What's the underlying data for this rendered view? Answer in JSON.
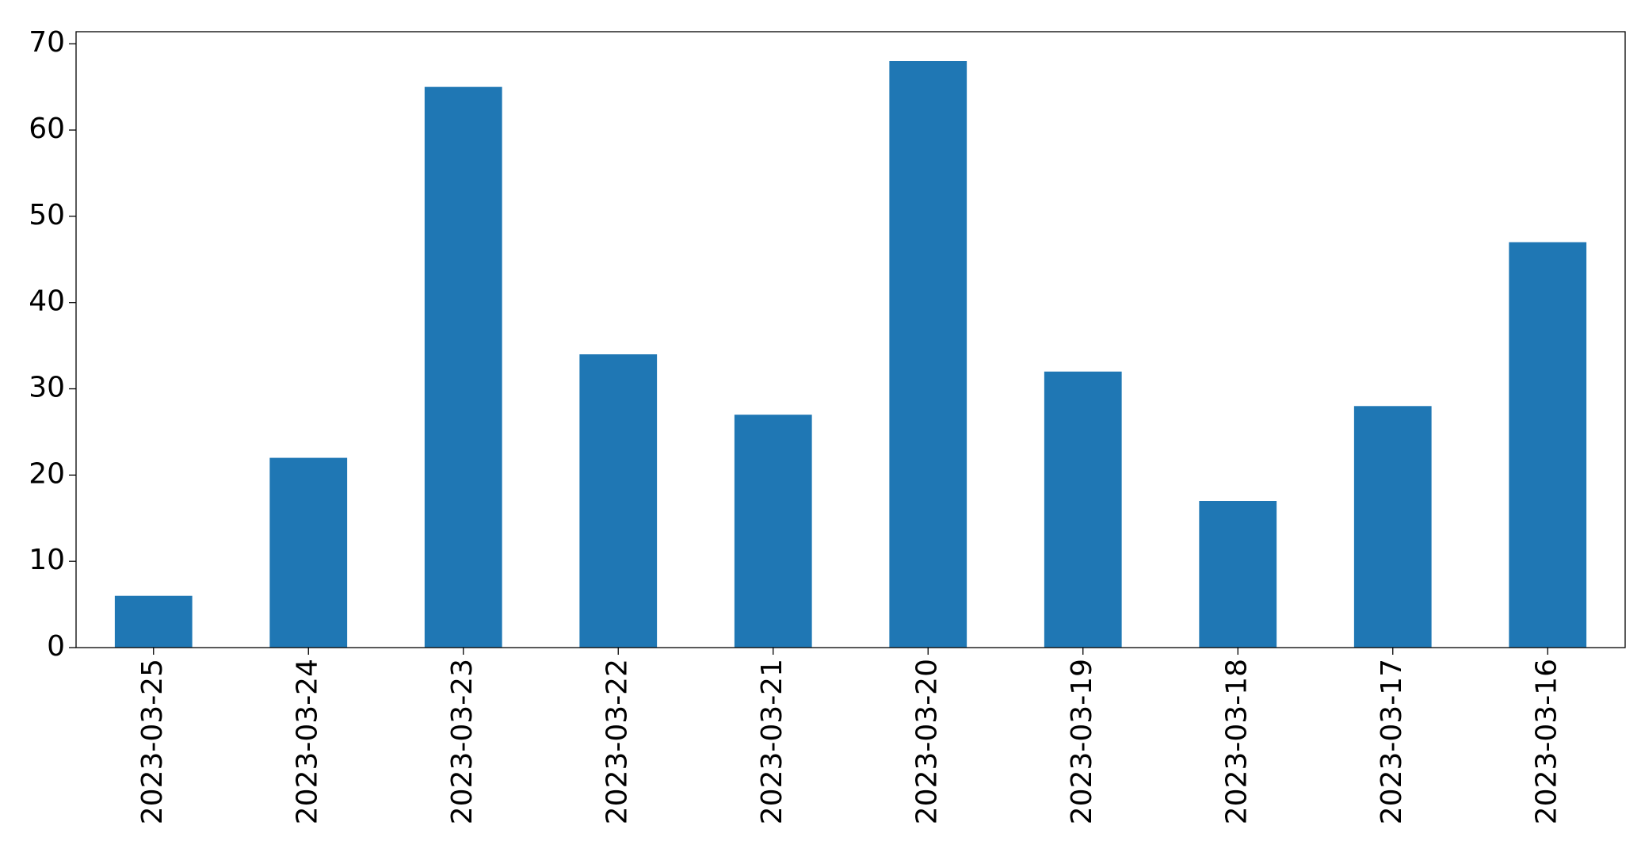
{
  "chart_data": {
    "type": "bar",
    "categories": [
      "2023-03-25",
      "2023-03-24",
      "2023-03-23",
      "2023-03-22",
      "2023-03-21",
      "2023-03-20",
      "2023-03-19",
      "2023-03-18",
      "2023-03-17",
      "2023-03-16"
    ],
    "values": [
      6,
      22,
      65,
      34,
      27,
      68,
      32,
      17,
      28,
      47
    ],
    "color": "#1f77b4",
    "ylim": [
      0,
      71.4
    ],
    "yticks": [
      0,
      10,
      20,
      30,
      40,
      50,
      60,
      70
    ],
    "grid": false
  }
}
